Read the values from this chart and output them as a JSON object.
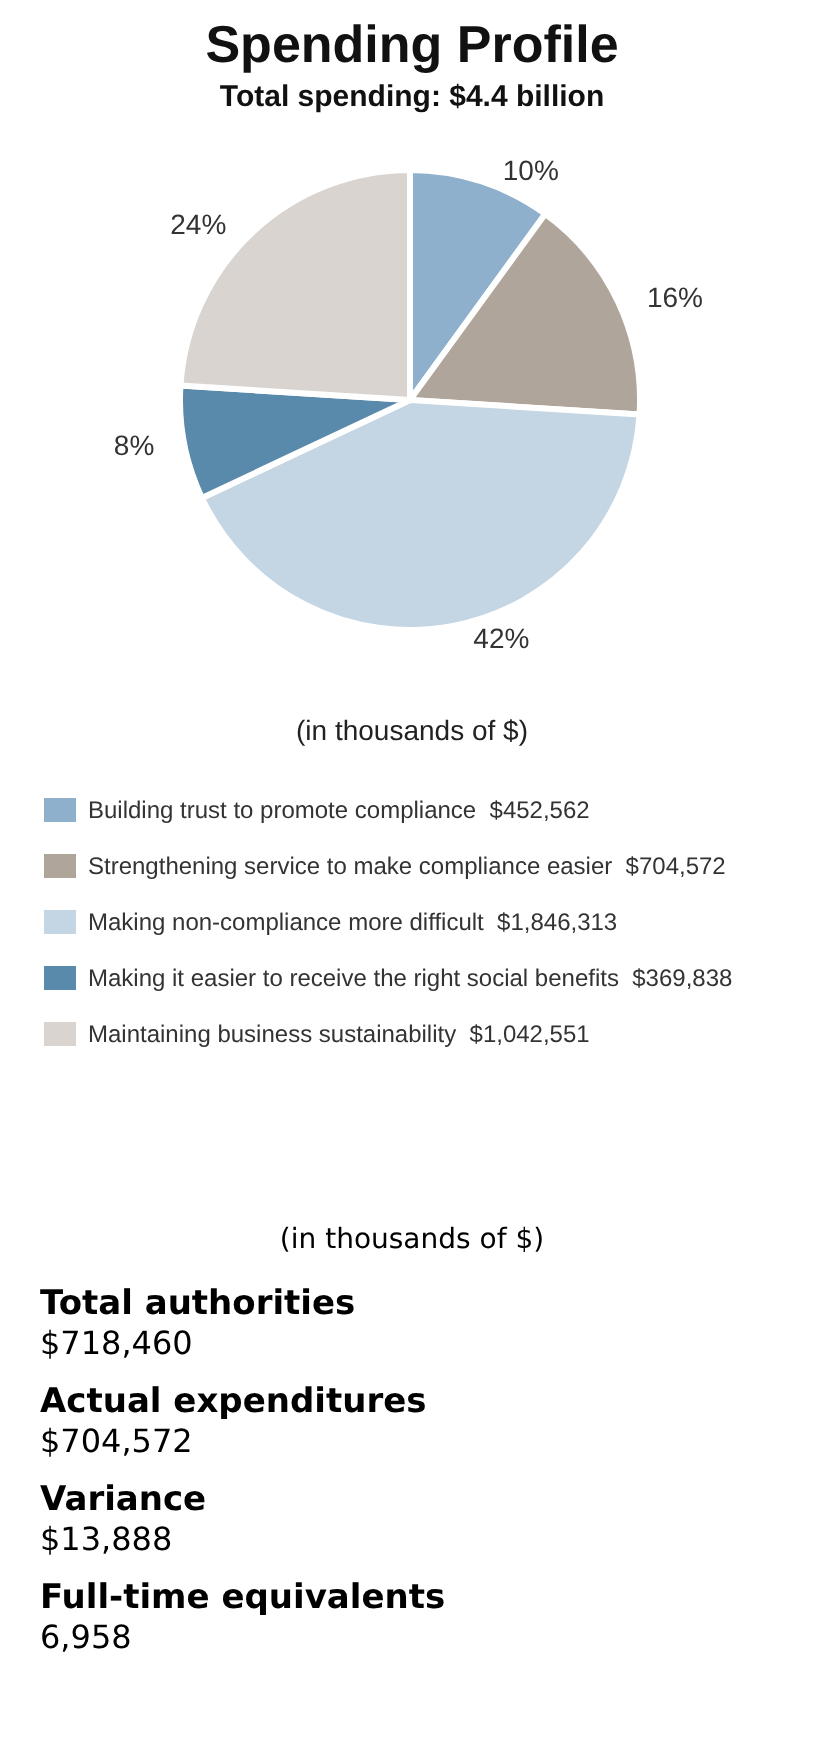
{
  "chart_data": {
    "type": "pie",
    "title": "Spending Profile",
    "subtitle": "Total spending: $4.4 billion",
    "categories": [
      "Building trust to promote compliance  $452,562",
      "Strengthening service to make compliance easier  $704,572",
      "Making non-compliance more difficult  $1,846,313",
      "Making it easier to receive the right social benefits  $369,838",
      "Maintaining business sustainability  $1,042,551"
    ],
    "values": [
      10,
      16,
      42,
      8,
      24
    ],
    "value_labels": [
      "10%",
      "16%",
      "42%",
      "8%",
      "24%"
    ],
    "colors": [
      "#8fb0cc",
      "#b0a59b",
      "#c4d5e3",
      "#5a8aab",
      "#d9d4cf"
    ],
    "legend": "bottom",
    "annotations": [
      "(in thousands of $)",
      "(in thousands of $)",
      "Total authorities",
      "$718,460",
      "Actual expenditures",
      "$704,572",
      "Variance",
      "$13,888",
      "Full-time equivalents",
      "6,958"
    ]
  }
}
